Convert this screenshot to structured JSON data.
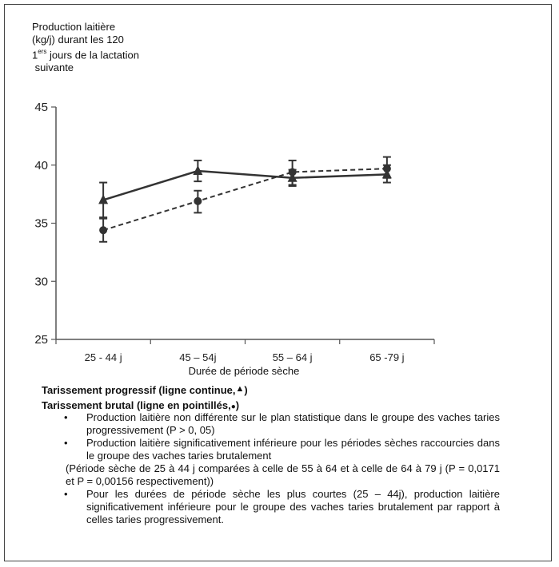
{
  "chart_data": {
    "type": "line",
    "ylabel_lines": [
      "Production laitière",
      "(kg/j) durant les 120",
      "1",
      "ers",
      " jours de la lactation",
      " suivante"
    ],
    "xlabel": "Durée de période sèche",
    "categories": [
      "25 - 44 j",
      "45 – 54j",
      "55 – 64 j",
      "65 -79 j"
    ],
    "ylim": [
      25,
      45
    ],
    "yticks": [
      25,
      30,
      35,
      40,
      45
    ],
    "grid": false,
    "series": [
      {
        "name": "Tarissement progressif (ligne continue,",
        "marker": "triangle",
        "line_style": "solid",
        "values": [
          37.0,
          39.5,
          38.9,
          39.2
        ],
        "err_low": [
          35.5,
          38.6,
          38.3,
          38.5
        ],
        "err_high": [
          38.5,
          40.4,
          39.6,
          40.0
        ]
      },
      {
        "name": "Tarissement brutal (ligne en pointillés,",
        "marker": "circle",
        "line_style": "dashed",
        "values": [
          34.4,
          36.9,
          39.4,
          39.7
        ],
        "err_low": [
          33.4,
          35.9,
          38.2,
          38.9
        ],
        "err_high": [
          35.4,
          37.8,
          40.4,
          40.7
        ]
      }
    ],
    "colors": {
      "line": "#333333",
      "axis": "#555555"
    }
  },
  "legend": {
    "progressive": {
      "text": "Tarissement progressif (ligne continue,",
      "symbol": "▲",
      "close": ")"
    },
    "abrupt": {
      "text": "Tarissement brutal (ligne en pointillés,",
      "symbol": "●",
      "close": ")"
    }
  },
  "notes": {
    "bullet1": "Production laitière non différente sur le plan statistique dans le groupe des vaches taries progressivement (P > 0, 05)",
    "bullet2": "Production laitière significativement inférieure pour les périodes sèches raccourcies  dans le groupe des vaches taries brutalement",
    "paren": "(Période sèche de 25 à 44 j comparées à celle de 55 à 64 et à celle de 64 à 79 j (P = 0,0171 et P = 0,00156 respectivement))",
    "bullet3": "Pour les durées de période sèche les plus courtes (25 – 44j), production laitière significativement inférieure pour le groupe des vaches taries brutalement par rapport à celles taries progressivement.",
    "bullet_symbol": "•"
  }
}
